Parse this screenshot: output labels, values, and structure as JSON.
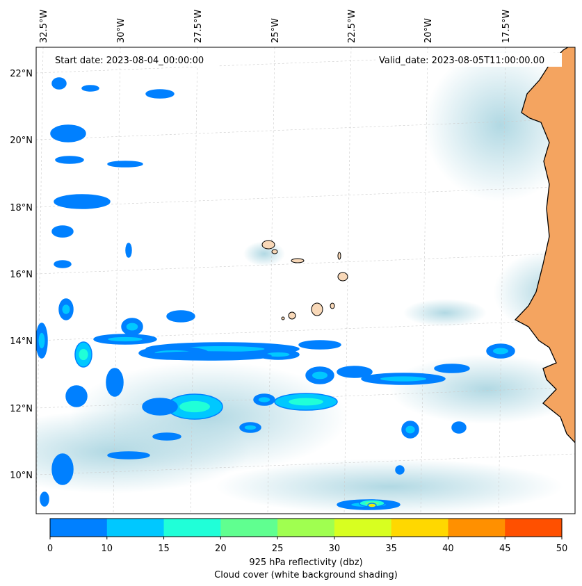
{
  "map": {
    "start_date": "Start date: 2023-08-04_00:00:00",
    "valid_date": "Valid_date: 2023-08-05T11:00:00.00",
    "lon_labels": [
      "32.5°W",
      "30°W",
      "27.5°W",
      "25°W",
      "22.5°W",
      "20°W",
      "17.5°W"
    ],
    "lat_labels": [
      "22°N",
      "20°N",
      "18°N",
      "16°N",
      "14°N",
      "12°N",
      "10°N"
    ],
    "land_color": "#f4a460",
    "cloud_color": "#a8d4e0"
  },
  "chart_data": {
    "type": "heatmap",
    "title": "",
    "colorbar": {
      "label_line1": "925 hPa reflectivity (dbz)",
      "label_line2": "Cloud cover (white background shading)",
      "levels": [
        0,
        10,
        15,
        20,
        25,
        30,
        35,
        40,
        45,
        50
      ],
      "tick_labels": [
        "0",
        "10",
        "15",
        "20",
        "25",
        "30",
        "35",
        "40",
        "45",
        "50"
      ],
      "colors": [
        "#0080ff",
        "#00c8ff",
        "#20ffd8",
        "#60ff90",
        "#a0ff50",
        "#d8ff20",
        "#ffd800",
        "#ff9000",
        "#ff5000"
      ]
    }
  }
}
